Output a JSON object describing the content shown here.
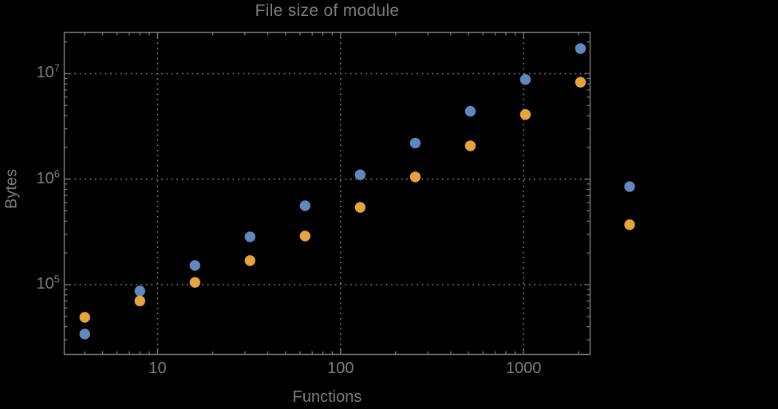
{
  "title": "File size of module",
  "colors": {
    "background": "#000000",
    "frame": "#7E7E7E",
    "grid": "#7A7A7A",
    "text": "#7D7D7D",
    "series_blue": "#6287BE",
    "series_orange": "#E7A43E"
  },
  "chart_data": {
    "type": "scatter",
    "title": "File size of module",
    "xlabel": "Functions",
    "ylabel": "Bytes",
    "x_scale": "log10",
    "y_scale": "log10",
    "xlim": [
      3.1,
      2300
    ],
    "ylim": [
      22000,
      24700000
    ],
    "grid": "dotted lines at decade ticks, both axes",
    "legend_position": "none",
    "x_ticks": [
      {
        "label": "10",
        "value": 10
      },
      {
        "label": "100",
        "value": 100
      },
      {
        "label": "1000",
        "value": 1000
      }
    ],
    "y_ticks": [
      {
        "mantissa": "10",
        "exponent": "5",
        "value": 100000
      },
      {
        "mantissa": "10",
        "exponent": "6",
        "value": 1000000
      },
      {
        "mantissa": "10",
        "exponent": "7",
        "value": 10000000
      }
    ],
    "x": [
      4,
      8,
      16,
      32,
      64,
      128,
      256,
      512,
      1024,
      2048,
      3800
    ],
    "series": [
      {
        "name": "blue",
        "marker": "circle",
        "color": "#6287BE",
        "values": [
          34000,
          87000,
          152000,
          284000,
          560000,
          1100000,
          2200000,
          4400000,
          8800000,
          17300000,
          850000
        ]
      },
      {
        "name": "orange",
        "marker": "circle",
        "color": "#E7A43E",
        "values": [
          49000,
          70000,
          105000,
          169000,
          289000,
          540000,
          1050000,
          2070000,
          4100000,
          8300000,
          370000
        ]
      }
    ]
  }
}
